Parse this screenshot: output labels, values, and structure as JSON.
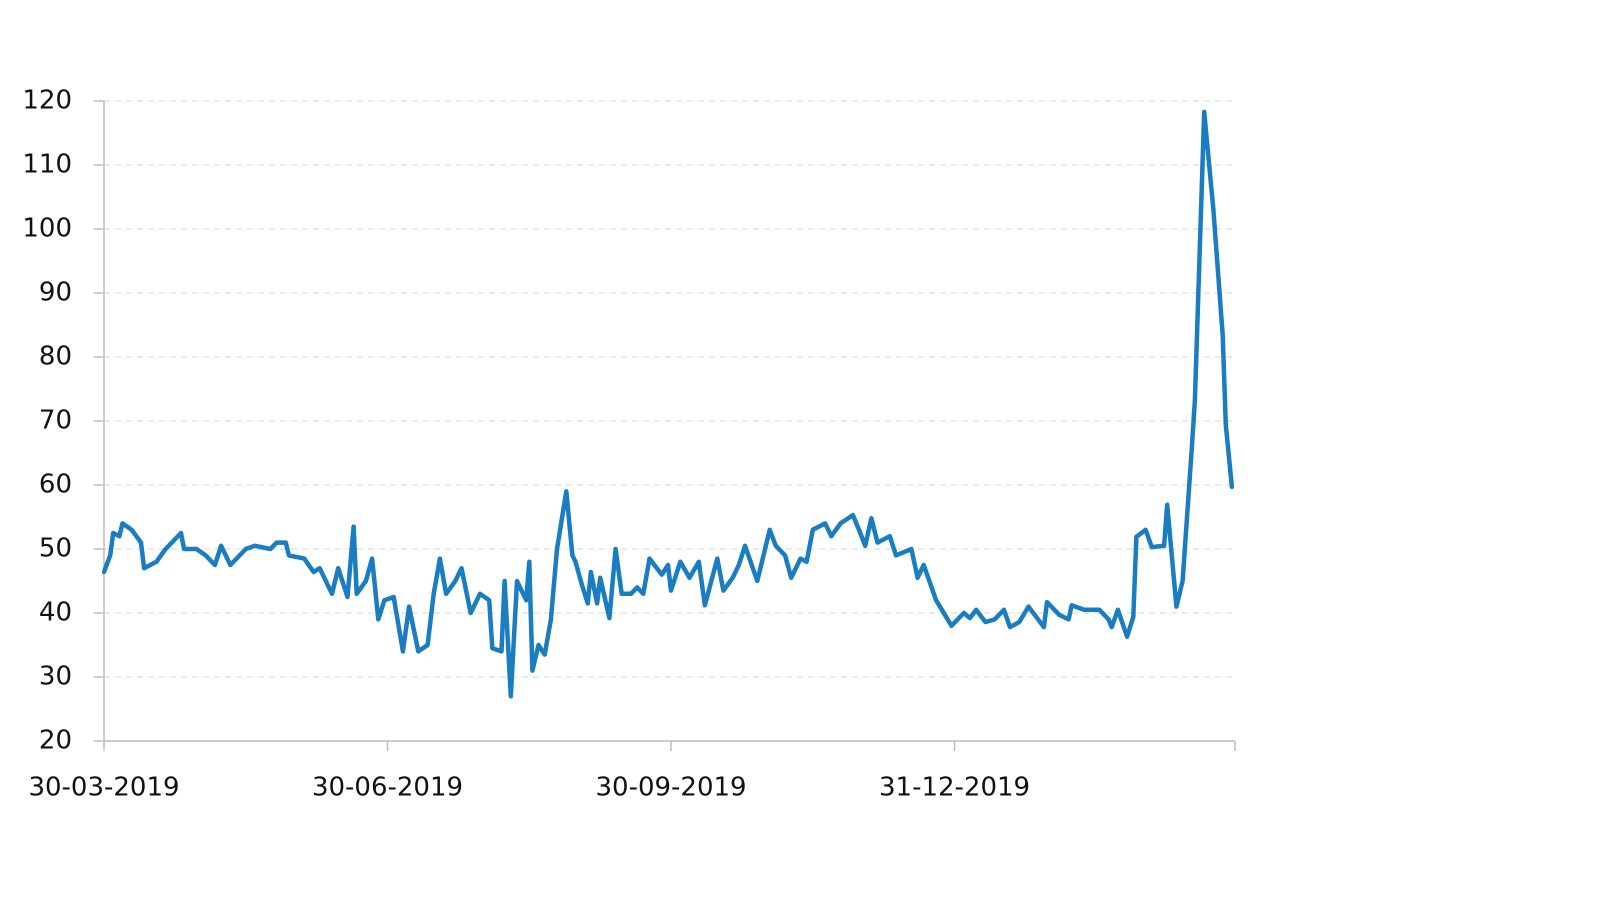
{
  "chart_data": {
    "type": "line",
    "x": [
      "2019-03-30",
      "2019-04-01",
      "2019-04-02",
      "2019-04-04",
      "2019-04-05",
      "2019-04-08",
      "2019-04-11",
      "2019-04-12",
      "2019-04-16",
      "2019-04-19",
      "2019-04-24",
      "2019-04-25",
      "2019-04-29",
      "2019-05-02",
      "2019-05-05",
      "2019-05-07",
      "2019-05-10",
      "2019-05-15",
      "2019-05-18",
      "2019-05-23",
      "2019-05-25",
      "2019-05-28",
      "2019-05-29",
      "2019-06-03",
      "2019-06-06",
      "2019-06-08",
      "2019-06-12",
      "2019-06-14",
      "2019-06-17",
      "2019-06-19",
      "2019-06-20",
      "2019-06-23",
      "2019-06-25",
      "2019-06-27",
      "2019-06-29",
      "2019-07-02",
      "2019-07-05",
      "2019-07-07",
      "2019-07-10",
      "2019-07-13",
      "2019-07-15",
      "2019-07-17",
      "2019-07-19",
      "2019-07-22",
      "2019-07-24",
      "2019-07-27",
      "2019-07-30",
      "2019-08-02",
      "2019-08-03",
      "2019-08-06",
      "2019-08-07",
      "2019-08-09",
      "2019-08-11",
      "2019-08-14",
      "2019-08-15",
      "2019-08-16",
      "2019-08-18",
      "2019-08-20",
      "2019-08-22",
      "2019-08-24",
      "2019-08-27",
      "2019-08-29",
      "2019-08-30",
      "2019-09-01",
      "2019-09-03",
      "2019-09-04",
      "2019-09-06",
      "2019-09-07",
      "2019-09-10",
      "2019-09-12",
      "2019-09-14",
      "2019-09-17",
      "2019-09-19",
      "2019-09-21",
      "2019-09-23",
      "2019-09-27",
      "2019-09-29",
      "2019-09-30",
      "2019-10-03",
      "2019-10-06",
      "2019-10-09",
      "2019-10-11",
      "2019-10-15",
      "2019-10-17",
      "2019-10-20",
      "2019-10-22",
      "2019-10-24",
      "2019-10-28",
      "2019-10-30",
      "2019-11-01",
      "2019-11-03",
      "2019-11-06",
      "2019-11-08",
      "2019-11-11",
      "2019-11-13",
      "2019-11-15",
      "2019-11-19",
      "2019-11-21",
      "2019-11-24",
      "2019-11-28",
      "2019-11-30",
      "2019-12-02",
      "2019-12-04",
      "2019-12-06",
      "2019-12-10",
      "2019-12-12",
      "2019-12-17",
      "2019-12-19",
      "2019-12-21",
      "2019-12-25",
      "2019-12-30",
      "2020-01-03",
      "2020-01-05",
      "2020-01-07",
      "2020-01-10",
      "2020-01-13",
      "2020-01-16",
      "2020-01-18",
      "2020-01-21",
      "2020-01-24",
      "2020-01-26",
      "2020-01-29",
      "2020-01-30",
      "2020-02-03",
      "2020-02-06",
      "2020-02-07",
      "2020-02-11",
      "2020-02-16",
      "2020-02-19",
      "2020-02-20",
      "2020-02-22",
      "2020-02-25",
      "2020-02-27",
      "2020-02-28",
      "2020-03-02",
      "2020-03-04",
      "2020-03-08",
      "2020-03-09",
      "2020-03-12",
      "2020-03-14",
      "2020-03-17",
      "2020-03-18",
      "2020-03-21",
      "2020-03-24",
      "2020-03-27",
      "2020-03-28",
      "2020-03-30"
    ],
    "series": [
      {
        "color": "#1a7dc1",
        "values": [
          46.4,
          49,
          52.5,
          52,
          54,
          53,
          51,
          47,
          48,
          50,
          52.5,
          50,
          50,
          49,
          47.5,
          50.5,
          47.5,
          50,
          50.5,
          50,
          51,
          51,
          49,
          48.5,
          46.4,
          47,
          43,
          47,
          42.5,
          53.5,
          43,
          45,
          48.5,
          39,
          42,
          42.5,
          34,
          41,
          34,
          35,
          43,
          48.5,
          43,
          45,
          47,
          40,
          43,
          42,
          34.5,
          34,
          45,
          27,
          45,
          42,
          48,
          31,
          35,
          33.5,
          39,
          50,
          59,
          49,
          48,
          44.5,
          41.5,
          46.4,
          41.5,
          45.5,
          39.2,
          50,
          43,
          43,
          44,
          43,
          48.5,
          46,
          47.5,
          43.5,
          48,
          45.5,
          48,
          41.2,
          48.5,
          43.5,
          45.5,
          47.5,
          50.5,
          45,
          49,
          53,
          50.5,
          49,
          45.5,
          48.5,
          48,
          53,
          54,
          52,
          54,
          55.3,
          53,
          50.5,
          54.8,
          51,
          52,
          49,
          50,
          45.5,
          47.5,
          42,
          38,
          40,
          39.2,
          40.5,
          38.6,
          39,
          40.5,
          37.8,
          38.6,
          41,
          39.7,
          37.8,
          41.7,
          39.7,
          39,
          41.2,
          40.5,
          40.5,
          39,
          37.8,
          40.5,
          36.3,
          39.4,
          51.9,
          53,
          50.3,
          50.5,
          56.9,
          41,
          45,
          66,
          73.3,
          118.3,
          103,
          83.4,
          69.4,
          59.7
        ]
      }
    ],
    "xlim": [
      "2019-03-30",
      "2020-03-31"
    ],
    "xticks": [
      {
        "value": "2019-03-30",
        "label": "30-03-2019"
      },
      {
        "value": "2019-06-30",
        "label": "30-06-2019"
      },
      {
        "value": "2019-09-30",
        "label": "30-09-2019"
      },
      {
        "value": "2019-12-31",
        "label": "31-12-2019"
      }
    ],
    "ylim": [
      20,
      120
    ],
    "yticks": [
      20,
      30,
      40,
      50,
      60,
      70,
      80,
      90,
      100,
      110,
      120
    ],
    "grid": true
  }
}
